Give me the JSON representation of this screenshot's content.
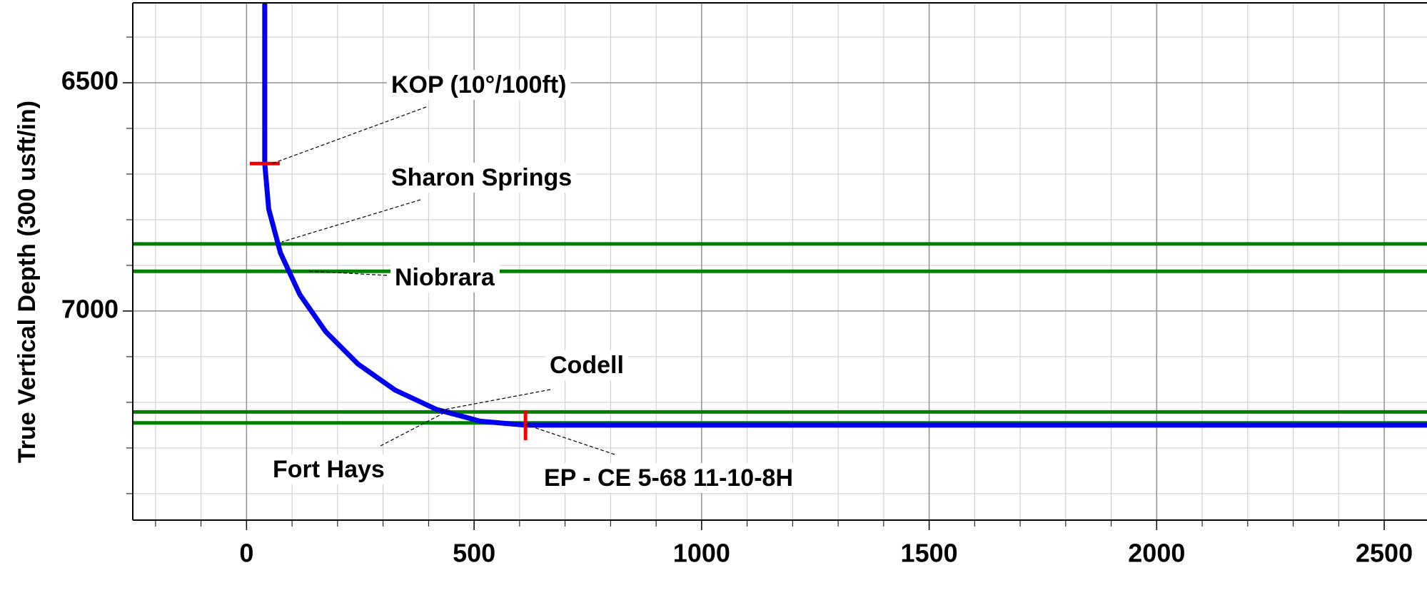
{
  "chart_data": {
    "type": "line",
    "ylabel": "True Vertical Depth (300 usft/in)",
    "xlim": [
      -250,
      2594
    ],
    "ylim": [
      6325,
      7458
    ],
    "xticks": [
      0,
      500,
      1000,
      1500,
      2000,
      2500
    ],
    "yticks": [
      6500,
      7000
    ],
    "xminorticks": [
      -200,
      -100,
      0,
      100,
      200,
      300,
      400,
      500,
      600,
      700,
      800,
      900,
      1000,
      1100,
      1200,
      1300,
      1400,
      1500,
      1600,
      1700,
      1800,
      1900,
      2000,
      2100,
      2200,
      2300,
      2400,
      2500
    ],
    "yminorticks": [
      6400,
      6500,
      6600,
      6700,
      6800,
      6900,
      7000,
      7100,
      7200,
      7300,
      7400
    ],
    "grid": true,
    "y_inverted": true,
    "x": [
      40,
      40,
      48.7,
      74.6,
      116.8,
      174,
      244.7,
      326.5,
      417,
      513.5,
      613,
      2594
    ],
    "series": [
      {
        "color": "#0000ee",
        "values": [
          6325,
          6677,
          6776.5,
          6873,
          6963.5,
          7045.3,
          7116,
          7173.2,
          7215.4,
          7241.3,
          7250,
          7250
        ]
      }
    ],
    "formations": [
      {
        "name": "Sharon Springs",
        "value": 6853,
        "color": "#008000"
      },
      {
        "name": "Niobrara",
        "value": 6913,
        "color": "#008000"
      },
      {
        "name": "Fort Hays",
        "value": 7221,
        "color": "#008000"
      },
      {
        "name": "Codell",
        "value": 7245,
        "color": "#008000"
      }
    ],
    "markers": [
      {
        "name": "KOP (10°/100ft)",
        "x": 40,
        "y": 6677,
        "color": "#ee0000",
        "orientation": "horizontal"
      },
      {
        "name": "EP - CE 5-68 11-10-8H",
        "x": 613,
        "y": 7250,
        "color": "#ee0000",
        "orientation": "vertical"
      }
    ]
  }
}
